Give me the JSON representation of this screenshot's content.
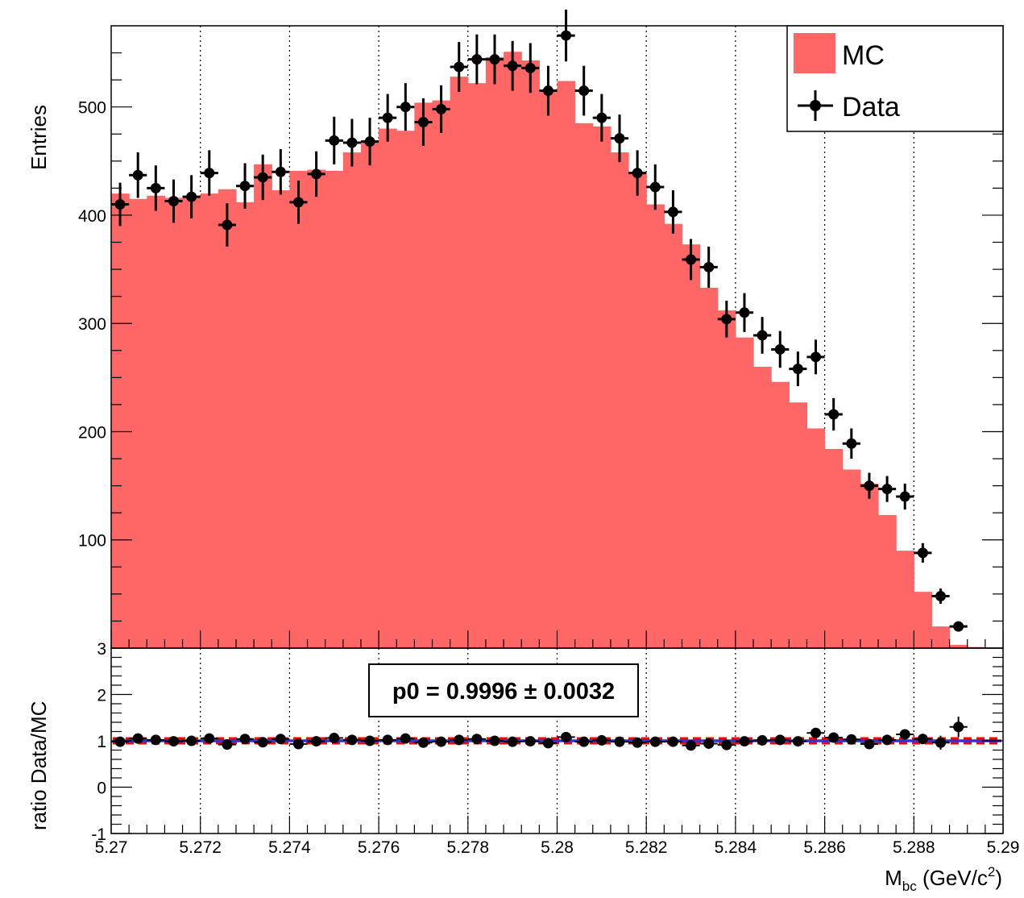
{
  "chart_data": [
    {
      "type": "histogram",
      "panel": "main",
      "ylabel": "Entries",
      "xlim": [
        5.27,
        5.29
      ],
      "ylim": [
        0,
        575
      ],
      "yticks": [
        {
          "value": 100,
          "label": "100"
        },
        {
          "value": 200,
          "label": "200"
        },
        {
          "value": 300,
          "label": "300"
        },
        {
          "value": 400,
          "label": "400"
        },
        {
          "value": 500,
          "label": "500"
        }
      ],
      "grid": "vertical dotted",
      "legend": {
        "position": "top-right",
        "entries": [
          {
            "label": "MC",
            "style": "fill",
            "color": "#ff6666"
          },
          {
            "label": "Data",
            "style": "marker",
            "color": "#000000"
          }
        ]
      },
      "series": [
        {
          "name": "MC",
          "kind": "histogram",
          "color": "#ff6666",
          "bin_width": 0.0004,
          "values": [
            420,
            415,
            418,
            416,
            418,
            420,
            424,
            412,
            447,
            423,
            441,
            442,
            441,
            458,
            469,
            480,
            478,
            504,
            506,
            528,
            522,
            546,
            551,
            543,
            515,
            524,
            485,
            482,
            458,
            440,
            410,
            392,
            373,
            333,
            312,
            287,
            260,
            246,
            227,
            203,
            184,
            165,
            152,
            123,
            90,
            52,
            20,
            3,
            1,
            0
          ]
        },
        {
          "name": "Data",
          "kind": "points",
          "color": "#000000",
          "x": [
            5.2702,
            5.2706,
            5.271,
            5.2714,
            5.2718,
            5.2722,
            5.2726,
            5.273,
            5.2734,
            5.2738,
            5.2742,
            5.2746,
            5.275,
            5.2754,
            5.2758,
            5.2762,
            5.2766,
            5.277,
            5.2774,
            5.2778,
            5.2782,
            5.2786,
            5.279,
            5.2794,
            5.2798,
            5.2802,
            5.2806,
            5.281,
            5.2814,
            5.2818,
            5.2822,
            5.2826,
            5.283,
            5.2834,
            5.2838,
            5.2842,
            5.2846,
            5.285,
            5.2854,
            5.2858,
            5.2862,
            5.2866,
            5.287,
            5.2874,
            5.2878,
            5.2882,
            5.2886,
            5.289
          ],
          "y": [
            410,
            437,
            425,
            413,
            417,
            439,
            391,
            427,
            435,
            440,
            412,
            438,
            469,
            467,
            468,
            490,
            500,
            486,
            498,
            537,
            544,
            544,
            538,
            536,
            515,
            566,
            515,
            490,
            471,
            439,
            426,
            403,
            359,
            352,
            304,
            310,
            289,
            276,
            258,
            269,
            216,
            189,
            150,
            147,
            140,
            88,
            48,
            20
          ],
          "yerr": [
            20,
            21,
            21,
            20,
            20,
            21,
            20,
            21,
            21,
            21,
            20,
            21,
            22,
            22,
            22,
            22,
            22,
            22,
            22,
            23,
            23,
            23,
            23,
            23,
            23,
            24,
            23,
            22,
            22,
            21,
            21,
            20,
            19,
            19,
            17,
            18,
            17,
            17,
            16,
            16,
            15,
            14,
            12,
            12,
            12,
            9,
            7,
            4
          ]
        }
      ]
    },
    {
      "type": "scatter",
      "panel": "ratio",
      "ylabel": "ratio Data/MC",
      "xlabel_main": "M",
      "xlabel_sub": "bc",
      "xlabel_tail": "(GeV/c",
      "xlabel_sup": "2",
      "xlabel_close": ")",
      "xlim": [
        5.27,
        5.29
      ],
      "ylim": [
        -1,
        3
      ],
      "xticks": [
        {
          "value": 5.27,
          "label": "5.27"
        },
        {
          "value": 5.272,
          "label": "5.272"
        },
        {
          "value": 5.274,
          "label": "5.274"
        },
        {
          "value": 5.276,
          "label": "5.276"
        },
        {
          "value": 5.278,
          "label": "5.278"
        },
        {
          "value": 5.28,
          "label": "5.28"
        },
        {
          "value": 5.282,
          "label": "5.282"
        },
        {
          "value": 5.284,
          "label": "5.284"
        },
        {
          "value": 5.286,
          "label": "5.286"
        },
        {
          "value": 5.288,
          "label": "5.288"
        },
        {
          "value": 5.29,
          "label": "5.29"
        }
      ],
      "yticks": [
        {
          "value": -1,
          "label": "-1"
        },
        {
          "value": 0,
          "label": "0"
        },
        {
          "value": 1,
          "label": "1"
        },
        {
          "value": 2,
          "label": "2"
        },
        {
          "value": 3,
          "label": "3"
        }
      ],
      "fit": {
        "label": "p0 = 0.9996  ± 0.0032",
        "p0": 0.9996,
        "error": 0.0032,
        "line_color": "#3333cc",
        "band_color": "#ff0000"
      },
      "series": [
        {
          "name": "ratio",
          "x": [
            5.2702,
            5.2706,
            5.271,
            5.2714,
            5.2718,
            5.2722,
            5.2726,
            5.273,
            5.2734,
            5.2738,
            5.2742,
            5.2746,
            5.275,
            5.2754,
            5.2758,
            5.2762,
            5.2766,
            5.277,
            5.2774,
            5.2778,
            5.2782,
            5.2786,
            5.279,
            5.2794,
            5.2798,
            5.2802,
            5.2806,
            5.281,
            5.2814,
            5.2818,
            5.2822,
            5.2826,
            5.283,
            5.2834,
            5.2838,
            5.2842,
            5.2846,
            5.285,
            5.2854,
            5.2858,
            5.2862,
            5.2866,
            5.287,
            5.2874,
            5.2878,
            5.2882,
            5.2886,
            5.289
          ],
          "y": [
            0.98,
            1.05,
            1.02,
            0.99,
            1.0,
            1.05,
            0.92,
            1.04,
            0.97,
            1.04,
            0.93,
            0.99,
            1.06,
            1.02,
            1.0,
            1.02,
            1.05,
            0.96,
            0.98,
            1.02,
            1.04,
            1.0,
            0.98,
            0.99,
            0.95,
            1.08,
            0.98,
            1.01,
            0.98,
            0.96,
            0.98,
            0.98,
            0.9,
            0.94,
            0.91,
            0.99,
            1.01,
            1.02,
            0.99,
            1.17,
            1.07,
            1.03,
            0.93,
            1.02,
            1.14,
            1.04,
            0.96,
            1.3
          ],
          "yerr": [
            0.05,
            0.05,
            0.05,
            0.05,
            0.05,
            0.05,
            0.05,
            0.05,
            0.05,
            0.05,
            0.05,
            0.05,
            0.05,
            0.05,
            0.05,
            0.05,
            0.05,
            0.05,
            0.05,
            0.05,
            0.05,
            0.05,
            0.05,
            0.05,
            0.05,
            0.05,
            0.05,
            0.05,
            0.05,
            0.05,
            0.05,
            0.05,
            0.05,
            0.05,
            0.06,
            0.06,
            0.06,
            0.06,
            0.06,
            0.06,
            0.07,
            0.07,
            0.08,
            0.08,
            0.09,
            0.11,
            0.15,
            0.22
          ]
        }
      ]
    }
  ]
}
